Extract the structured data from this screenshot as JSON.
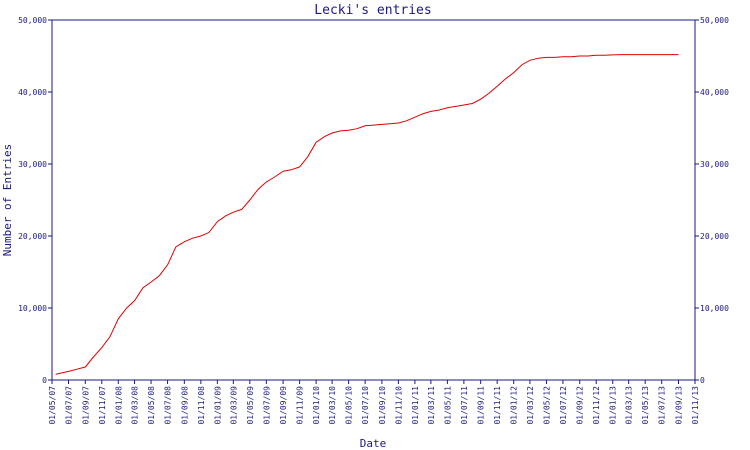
{
  "colors": {
    "axis": "#1a1a80",
    "series": "#e00000",
    "background": "#ffffff"
  },
  "chart_data": {
    "type": "line",
    "title": "Lecki's entries",
    "xlabel": "Date",
    "ylabel": "Number of Entries",
    "ylim": [
      0,
      50000
    ],
    "yticks": [
      0,
      10000,
      20000,
      30000,
      40000,
      50000
    ],
    "ytick_labels": [
      "0",
      "10,000",
      "20,000",
      "30,000",
      "40,000",
      "50,000"
    ],
    "xlim": [
      "2007-05-01",
      "2013-11-01"
    ],
    "xtick_labels": [
      "01/05/07",
      "01/07/07",
      "01/09/07",
      "01/11/07",
      "01/01/08",
      "01/03/08",
      "01/05/08",
      "01/07/08",
      "01/09/08",
      "01/11/08",
      "01/01/09",
      "01/03/09",
      "01/05/09",
      "01/07/09",
      "01/09/09",
      "01/11/09",
      "01/01/10",
      "01/03/10",
      "01/05/10",
      "01/07/10",
      "01/09/10",
      "01/11/10",
      "01/01/11",
      "01/03/11",
      "01/05/11",
      "01/07/11",
      "01/09/11",
      "01/11/11",
      "01/01/12",
      "01/03/12",
      "01/05/12",
      "01/07/12",
      "01/09/12",
      "01/11/12",
      "01/01/13",
      "01/03/13",
      "01/05/13",
      "01/07/13",
      "01/09/13",
      "01/11/13"
    ],
    "grid": false,
    "series": [
      {
        "x": [
          "2007-05-15",
          "2007-07-01",
          "2007-08-01",
          "2007-09-01",
          "2007-10-01",
          "2007-11-01",
          "2007-12-01",
          "2008-01-01",
          "2008-02-01",
          "2008-03-01",
          "2008-04-01",
          "2008-05-01",
          "2008-06-01",
          "2008-07-01",
          "2008-08-01",
          "2008-09-01",
          "2008-10-01",
          "2008-11-01",
          "2008-12-01",
          "2009-01-01",
          "2009-02-01",
          "2009-03-01",
          "2009-04-01",
          "2009-05-01",
          "2009-06-01",
          "2009-07-01",
          "2009-08-01",
          "2009-09-01",
          "2009-10-01",
          "2009-11-01",
          "2009-12-01",
          "2010-01-01",
          "2010-02-01",
          "2010-03-01",
          "2010-04-01",
          "2010-05-01",
          "2010-06-01",
          "2010-07-01",
          "2010-08-01",
          "2010-09-01",
          "2010-10-01",
          "2010-11-01",
          "2010-12-01",
          "2011-01-01",
          "2011-02-01",
          "2011-03-01",
          "2011-04-01",
          "2011-05-01",
          "2011-06-01",
          "2011-07-01",
          "2011-08-01",
          "2011-09-01",
          "2011-10-01",
          "2011-11-01",
          "2011-12-01",
          "2012-01-01",
          "2012-02-01",
          "2012-03-01",
          "2012-04-01",
          "2012-05-01",
          "2012-06-01",
          "2012-07-01",
          "2012-08-01",
          "2012-09-01",
          "2012-10-01",
          "2012-11-01",
          "2012-12-01",
          "2013-01-01",
          "2013-02-01",
          "2013-03-01",
          "2013-04-01",
          "2013-05-01",
          "2013-06-01",
          "2013-07-01",
          "2013-08-01",
          "2013-09-01"
        ],
        "y": [
          800,
          1200,
          1500,
          1800,
          3200,
          4500,
          6000,
          8500,
          10000,
          11000,
          12800,
          13600,
          14500,
          16000,
          18500,
          19200,
          19700,
          20000,
          20500,
          22000,
          22800,
          23300,
          23700,
          25000,
          26500,
          27500,
          28200,
          29000,
          29200,
          29600,
          31000,
          33000,
          33800,
          34300,
          34600,
          34700,
          34900,
          35300,
          35400,
          35500,
          35600,
          35700,
          36000,
          36500,
          37000,
          37300,
          37500,
          37800,
          38000,
          38200,
          38400,
          39000,
          39800,
          40800,
          41800,
          42700,
          43800,
          44400,
          44700,
          44800,
          44800,
          44900,
          44900,
          45000,
          45000,
          45100,
          45100,
          45150,
          45200,
          45200,
          45200,
          45200,
          45200,
          45200,
          45200,
          45200
        ]
      }
    ]
  }
}
